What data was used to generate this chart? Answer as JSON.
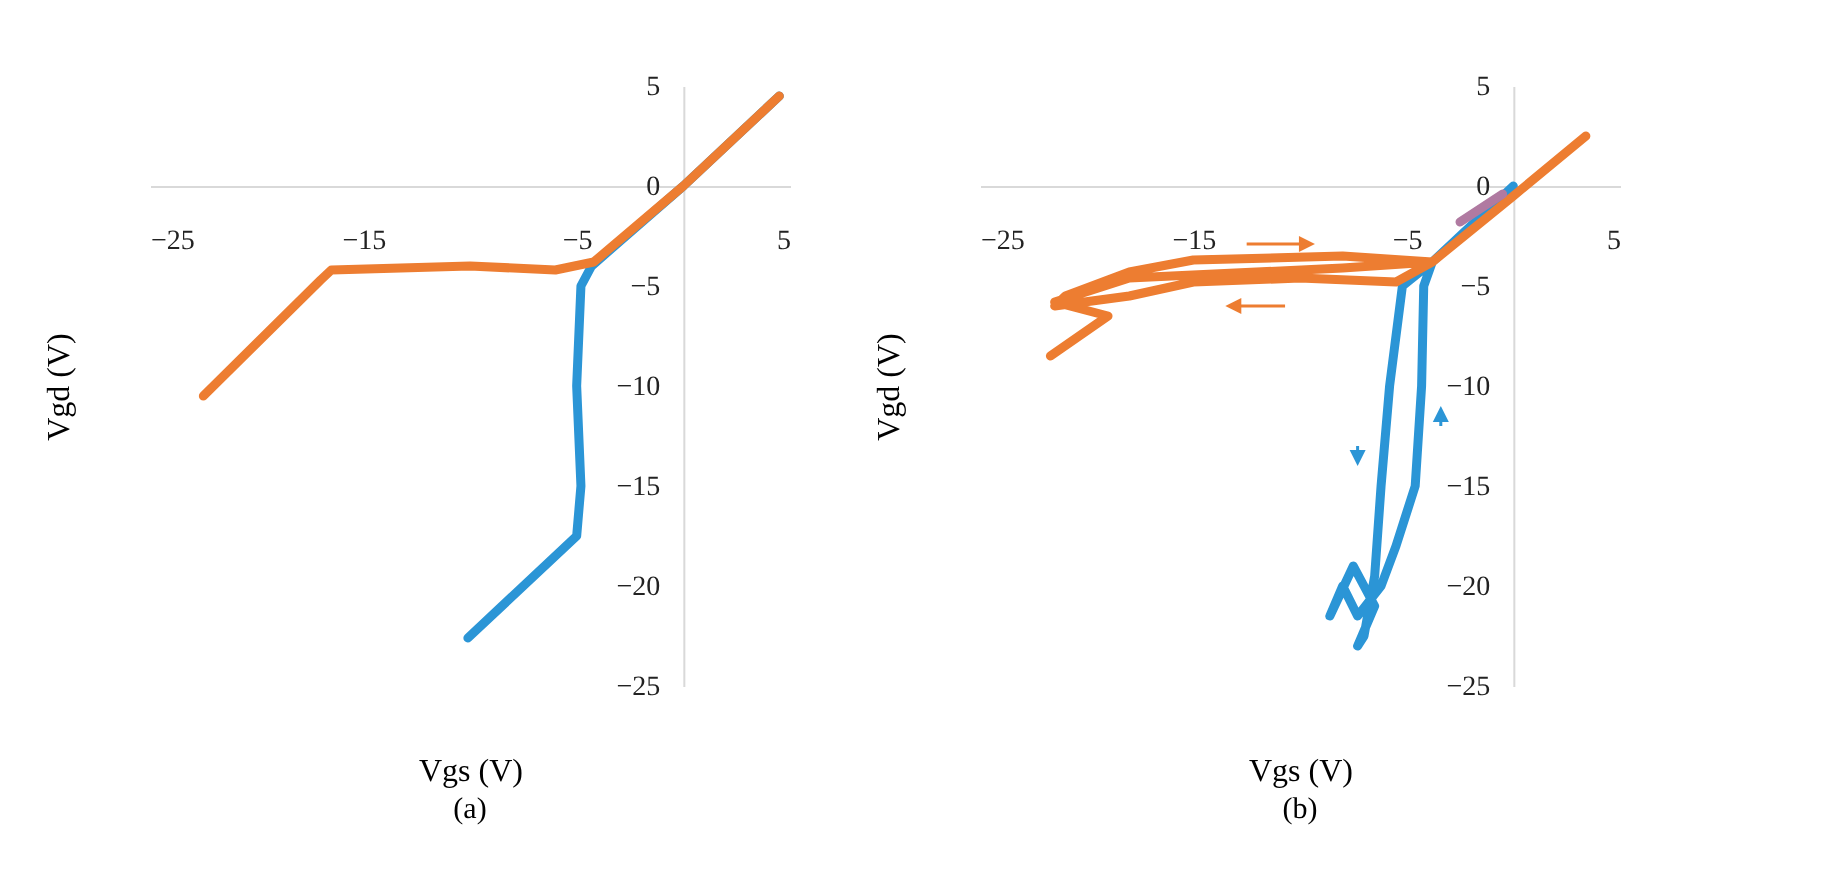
{
  "chart_data": [
    {
      "type": "line",
      "title": "(a)",
      "xlabel": "Vgs (V)",
      "ylabel": "Vgd (V)",
      "xlim": [
        -25,
        5
      ],
      "ylim": [
        -25,
        5
      ],
      "xticks": [
        -25,
        -15,
        -5,
        5
      ],
      "yticks": [
        5,
        0,
        -5,
        -10,
        -15,
        -20,
        -25
      ],
      "series": [
        {
          "color": "#2b95d6",
          "x": [
            -10.1,
            -7.5,
            -5,
            -4.8,
            -5,
            -4.8,
            -4.3,
            0,
            4.5
          ],
          "values": [
            -22.6,
            -20,
            -17.5,
            -15,
            -10,
            -5,
            -4,
            0,
            4.5
          ]
        },
        {
          "color": "#ed7d31",
          "x": [
            -22.5,
            -17,
            -16.5,
            -10,
            -6,
            -4.2,
            0,
            4.5
          ],
          "values": [
            -10.5,
            -4.7,
            -4.2,
            -4,
            -4.2,
            -3.8,
            0,
            4.5
          ]
        }
      ]
    },
    {
      "type": "line",
      "title": "(b)",
      "xlabel": "Vgs (V)",
      "ylabel": "Vgd (V)",
      "xlim": [
        -25,
        5
      ],
      "ylim": [
        -25,
        5
      ],
      "xticks": [
        -25,
        -15,
        -5,
        5
      ],
      "yticks": [
        5,
        0,
        -5,
        -10,
        -15,
        -20,
        -25
      ],
      "series": [
        {
          "color": "#2b95d6",
          "x": [
            0,
            -3.8,
            -5.2,
            -5.8,
            -6.2,
            -6.5,
            -7,
            -7.3,
            -6.5,
            -7.5,
            -8.6,
            -8,
            -7.3,
            -6.2,
            -5.5,
            -4.6,
            -4.3,
            -4.2,
            -3.8
          ],
          "values": [
            0,
            -3.8,
            -5,
            -10,
            -15,
            -19.5,
            -22.5,
            -23,
            -21,
            -19,
            -21.5,
            -20,
            -21.5,
            -20,
            -18,
            -15,
            -10,
            -5,
            -3.8
          ]
        },
        {
          "color": "#ed7d31",
          "x": [
            3.4,
            0,
            -3.8,
            -8,
            -15,
            -18,
            -21,
            -21.5,
            -18,
            -15,
            -10,
            -5.5,
            -3.8,
            -8,
            -18,
            -21.5,
            -19,
            -21.7
          ],
          "values": [
            2.5,
            -0.5,
            -3.8,
            -3.5,
            -3.7,
            -4.3,
            -5.5,
            -6,
            -5.5,
            -4.8,
            -4.6,
            -4.8,
            -3.8,
            -4.1,
            -4.6,
            -5.8,
            -6.5,
            -8.5
          ]
        },
        {
          "color": "#b07aa1",
          "x": [
            -2.5,
            -0.5
          ],
          "values": [
            -1.8,
            -0.4
          ]
        }
      ]
    }
  ]
}
